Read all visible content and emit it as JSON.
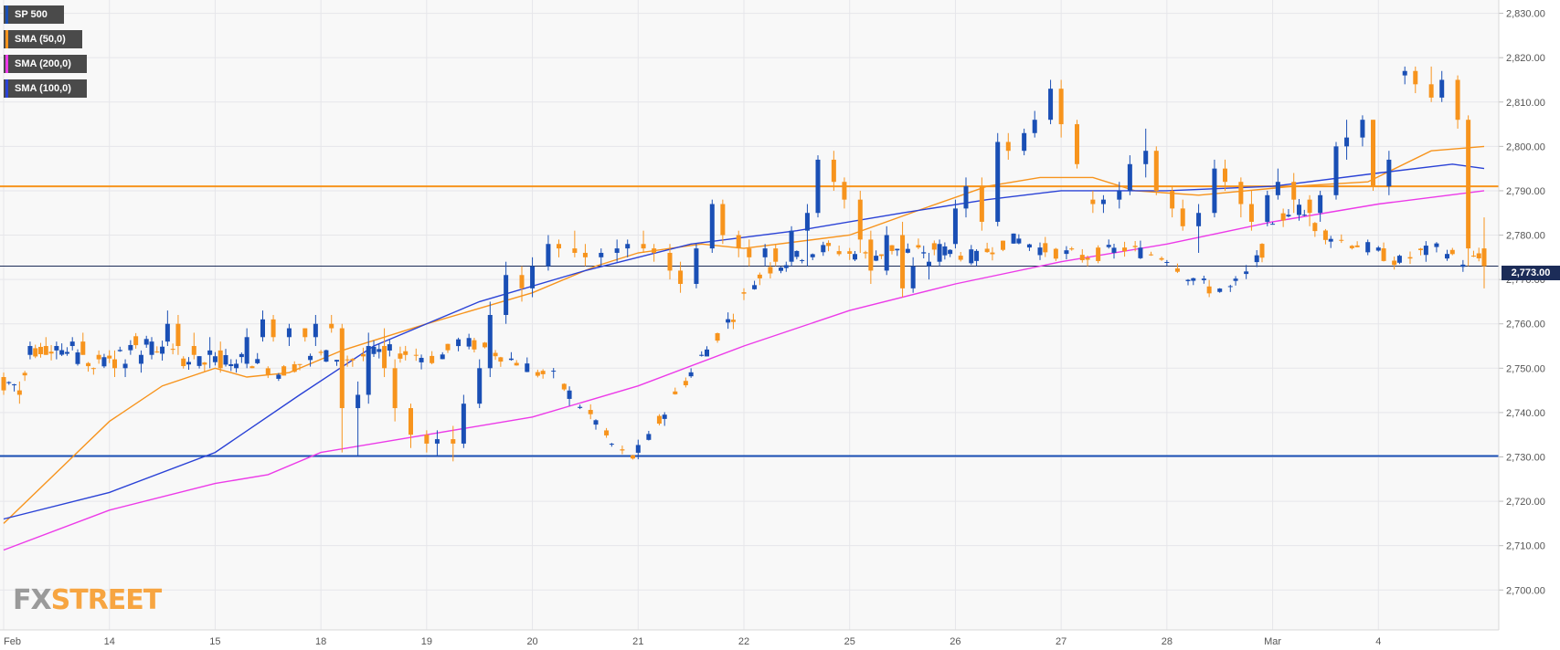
{
  "legend": {
    "symbol": "SP 500",
    "sma50": "SMA (50,0)",
    "sma200": "SMA (200,0)",
    "sma100": "SMA (100,0)"
  },
  "colors": {
    "bull": "#1a4fb5",
    "bear": "#f7941d",
    "sma50": "#f7941d",
    "sma100": "#2a42d6",
    "sma200": "#ec3ae8",
    "resistance": "#f7941d",
    "support": "#1a4fb5",
    "price_line": "#1c2c58",
    "grid": "#e6e6ea",
    "background": "#f8f8f8"
  },
  "logo": {
    "fx": "FX",
    "street": "STREET"
  },
  "last_price": "2,773.00",
  "chart_data": {
    "type": "candlestick",
    "title": "",
    "xlabel": "",
    "ylabel": "",
    "ylim": [
      2691,
      2833
    ],
    "grid": true,
    "y_ticks": [
      "2,700.00",
      "2,710.00",
      "2,720.00",
      "2,730.00",
      "2,740.00",
      "2,750.00",
      "2,760.00",
      "2,770.00",
      "2,780.00",
      "2,790.00",
      "2,800.00",
      "2,810.00",
      "2,820.00",
      "2,830.00"
    ],
    "y_tick_values": [
      2700,
      2710,
      2720,
      2730,
      2740,
      2750,
      2760,
      2770,
      2780,
      2790,
      2800,
      2810,
      2820,
      2830
    ],
    "x_ticks": [
      "Feb",
      "14",
      "15",
      "18",
      "19",
      "20",
      "21",
      "22",
      "25",
      "26",
      "27",
      "28",
      "Mar",
      "4"
    ],
    "x_tick_index": [
      0,
      20,
      40,
      60,
      80,
      100,
      120,
      140,
      160,
      180,
      200,
      220,
      240,
      260
    ],
    "bars_in_view": 281,
    "horizontal_levels": [
      {
        "name": "resistance",
        "value": 2791
      },
      {
        "name": "support",
        "value": 2730.2
      }
    ],
    "current_price": 2773.0,
    "close_path": [
      [
        0,
        2747
      ],
      [
        3,
        2746
      ],
      [
        6,
        2754
      ],
      [
        10,
        2755
      ],
      [
        14,
        2752
      ],
      [
        18,
        2750
      ],
      [
        22,
        2755
      ],
      [
        26,
        2756
      ],
      [
        30,
        2754
      ],
      [
        34,
        2752
      ],
      [
        38,
        2751
      ],
      [
        42,
        2752
      ],
      [
        46,
        2752
      ],
      [
        52,
        2749
      ],
      [
        56,
        2751
      ],
      [
        60,
        2753
      ],
      [
        66,
        2752
      ],
      [
        72,
        2754
      ],
      [
        78,
        2753
      ],
      [
        82,
        2752
      ],
      [
        86,
        2756
      ],
      [
        90,
        2755
      ],
      [
        94,
        2753
      ],
      [
        98,
        2751
      ],
      [
        101,
        2749
      ],
      [
        104,
        2748
      ],
      [
        108,
        2743
      ],
      [
        112,
        2738
      ],
      [
        116,
        2731
      ],
      [
        119,
        2730
      ],
      [
        122,
        2734
      ],
      [
        126,
        2742
      ],
      [
        130,
        2749
      ],
      [
        134,
        2756
      ],
      [
        138,
        2762
      ],
      [
        141,
        2768
      ],
      [
        144,
        2772
      ],
      [
        148,
        2774
      ],
      [
        152,
        2776
      ],
      [
        156,
        2777
      ],
      [
        160,
        2776
      ],
      [
        164,
        2775
      ],
      [
        168,
        2777
      ],
      [
        172,
        2776
      ],
      [
        176,
        2777
      ],
      [
        180,
        2776
      ],
      [
        184,
        2775
      ],
      [
        188,
        2778
      ],
      [
        192,
        2779
      ],
      [
        196,
        2777
      ],
      [
        200,
        2776
      ],
      [
        204,
        2775
      ],
      [
        208,
        2776
      ],
      [
        212,
        2777
      ],
      [
        216,
        2776
      ],
      [
        220,
        2775
      ],
      [
        224,
        2771
      ],
      [
        228,
        2768
      ],
      [
        232,
        2768
      ],
      [
        236,
        2772
      ],
      [
        240,
        2781
      ],
      [
        244,
        2787
      ],
      [
        248,
        2782
      ],
      [
        252,
        2779
      ],
      [
        256,
        2778
      ],
      [
        260,
        2776
      ],
      [
        264,
        2774
      ],
      [
        268,
        2776
      ],
      [
        272,
        2777
      ],
      [
        276,
        2774
      ],
      [
        280,
        2775
      ]
    ],
    "series": [
      {
        "name": "SP 500",
        "candles_ohlc": [
          [
            2748,
            2749,
            2744,
            2745
          ],
          [
            2745,
            2747,
            2742,
            2744
          ],
          [
            2753,
            2756,
            2752,
            2755
          ],
          [
            2755,
            2757,
            2753,
            2753
          ],
          [
            2754,
            2756,
            2752,
            2755
          ],
          [
            2755,
            2757,
            2754,
            2756
          ],
          [
            2756,
            2758,
            2753,
            2753
          ],
          [
            2753,
            2754,
            2751,
            2752
          ],
          [
            2752,
            2754,
            2748,
            2750
          ],
          [
            2750,
            2752,
            2748,
            2751
          ],
          [
            2751,
            2754,
            2749,
            2753
          ],
          [
            2753,
            2757,
            2752,
            2756
          ],
          [
            2756,
            2763,
            2755,
            2760
          ],
          [
            2760,
            2762,
            2753,
            2755
          ],
          [
            2755,
            2758,
            2752,
            2753
          ],
          [
            2753,
            2757,
            2750,
            2754
          ],
          [
            2754,
            2756,
            2749,
            2750
          ],
          [
            2750,
            2752,
            2749,
            2751
          ],
          [
            2751,
            2759,
            2750,
            2757
          ],
          [
            2757,
            2763,
            2756,
            2761
          ],
          [
            2761,
            2762,
            2756,
            2757
          ],
          [
            2757,
            2760,
            2755,
            2759
          ],
          [
            2759,
            2759,
            2756,
            2757
          ],
          [
            2757,
            2762,
            2755,
            2760
          ],
          [
            2760,
            2762,
            2758,
            2759
          ],
          [
            2759,
            2760,
            2731,
            2741
          ],
          [
            2741,
            2747,
            2730,
            2744
          ],
          [
            2744,
            2758,
            2742,
            2755
          ],
          [
            2755,
            2759,
            2748,
            2750
          ],
          [
            2750,
            2752,
            2738,
            2741
          ],
          [
            2741,
            2742,
            2732,
            2735
          ],
          [
            2735,
            2736,
            2731,
            2733
          ],
          [
            2733,
            2736,
            2730,
            2734
          ],
          [
            2734,
            2737,
            2729,
            2733
          ],
          [
            2733,
            2744,
            2732,
            2742
          ],
          [
            2742,
            2752,
            2741,
            2750
          ],
          [
            2750,
            2765,
            2748,
            2762
          ],
          [
            2762,
            2774,
            2760,
            2771
          ],
          [
            2771,
            2773,
            2765,
            2768
          ],
          [
            2768,
            2775,
            2766,
            2773
          ],
          [
            2773,
            2780,
            2772,
            2778
          ],
          [
            2778,
            2779,
            2775,
            2777
          ],
          [
            2777,
            2781,
            2775,
            2776
          ],
          [
            2776,
            2778,
            2773,
            2775
          ],
          [
            2775,
            2777,
            2773,
            2776
          ],
          [
            2776,
            2779,
            2774,
            2777
          ],
          [
            2777,
            2779,
            2775,
            2778
          ],
          [
            2778,
            2781,
            2776,
            2777
          ],
          [
            2777,
            2778,
            2774,
            2776
          ],
          [
            2776,
            2778,
            2770,
            2772
          ],
          [
            2772,
            2774,
            2767,
            2769
          ],
          [
            2769,
            2778,
            2768,
            2777
          ],
          [
            2777,
            2788,
            2776,
            2787
          ],
          [
            2787,
            2788,
            2778,
            2780
          ],
          [
            2780,
            2781,
            2775,
            2777
          ],
          [
            2777,
            2779,
            2773,
            2775
          ],
          [
            2775,
            2778,
            2773,
            2777
          ],
          [
            2777,
            2778,
            2773,
            2774
          ],
          [
            2774,
            2782,
            2773,
            2781
          ],
          [
            2781,
            2787,
            2773,
            2785
          ],
          [
            2785,
            2798,
            2784,
            2797
          ],
          [
            2797,
            2799,
            2790,
            2792
          ],
          [
            2792,
            2793,
            2786,
            2788
          ],
          [
            2788,
            2790,
            2776,
            2779
          ],
          [
            2779,
            2781,
            2769,
            2772
          ],
          [
            2772,
            2782,
            2771,
            2780
          ],
          [
            2780,
            2783,
            2766,
            2768
          ],
          [
            2768,
            2775,
            2767,
            2773
          ],
          [
            2773,
            2776,
            2770,
            2774
          ],
          [
            2774,
            2779,
            2773,
            2778
          ],
          [
            2778,
            2788,
            2777,
            2786
          ],
          [
            2786,
            2793,
            2784,
            2791
          ],
          [
            2791,
            2793,
            2781,
            2783
          ],
          [
            2783,
            2803,
            2782,
            2801
          ],
          [
            2801,
            2803,
            2797,
            2799
          ],
          [
            2799,
            2804,
            2798,
            2803
          ],
          [
            2803,
            2808,
            2802,
            2806
          ],
          [
            2806,
            2815,
            2805,
            2813
          ],
          [
            2813,
            2815,
            2802,
            2805
          ],
          [
            2805,
            2806,
            2795,
            2796
          ],
          [
            2788,
            2790,
            2785,
            2787
          ],
          [
            2787,
            2789,
            2785,
            2788
          ],
          [
            2788,
            2792,
            2786,
            2790
          ],
          [
            2790,
            2798,
            2789,
            2796
          ],
          [
            2796,
            2804,
            2793,
            2799
          ],
          [
            2799,
            2800,
            2789,
            2790
          ],
          [
            2790,
            2791,
            2784,
            2786
          ],
          [
            2786,
            2788,
            2781,
            2782
          ],
          [
            2782,
            2787,
            2776,
            2785
          ],
          [
            2785,
            2797,
            2784,
            2795
          ],
          [
            2795,
            2797,
            2790,
            2792
          ],
          [
            2792,
            2793,
            2784,
            2787
          ],
          [
            2787,
            2790,
            2781,
            2783
          ],
          [
            2783,
            2790,
            2782,
            2789
          ],
          [
            2789,
            2795,
            2788,
            2792
          ],
          [
            2792,
            2794,
            2785,
            2788
          ],
          [
            2788,
            2789,
            2782,
            2785
          ],
          [
            2785,
            2790,
            2783,
            2789
          ],
          [
            2789,
            2801,
            2788,
            2800
          ],
          [
            2800,
            2806,
            2797,
            2802
          ],
          [
            2802,
            2807,
            2800,
            2806
          ],
          [
            2806,
            2806,
            2790,
            2791
          ],
          [
            2791,
            2799,
            2789,
            2797
          ],
          [
            2816,
            2818,
            2814,
            2817
          ],
          [
            2817,
            2818,
            2812,
            2814
          ],
          [
            2814,
            2818,
            2810,
            2811
          ],
          [
            2811,
            2817,
            2810,
            2815
          ],
          [
            2815,
            2816,
            2804,
            2806
          ],
          [
            2806,
            2807,
            2773,
            2777
          ],
          [
            2777,
            2784,
            2768,
            2773
          ]
        ]
      },
      {
        "name": "SMA (50,0)",
        "path": [
          [
            0,
            2715
          ],
          [
            20,
            2738
          ],
          [
            30,
            2746
          ],
          [
            40,
            2750
          ],
          [
            46,
            2748
          ],
          [
            54,
            2749
          ],
          [
            64,
            2754
          ],
          [
            80,
            2760
          ],
          [
            100,
            2767
          ],
          [
            112,
            2773
          ],
          [
            120,
            2776
          ],
          [
            132,
            2778
          ],
          [
            140,
            2777
          ],
          [
            160,
            2780
          ],
          [
            174,
            2786
          ],
          [
            186,
            2791
          ],
          [
            196,
            2793
          ],
          [
            206,
            2793
          ],
          [
            214,
            2790
          ],
          [
            226,
            2789
          ],
          [
            244,
            2791
          ],
          [
            258,
            2792
          ],
          [
            270,
            2799
          ],
          [
            280,
            2800
          ]
        ]
      },
      {
        "name": "SMA (100,0)",
        "path": [
          [
            0,
            2716
          ],
          [
            20,
            2722
          ],
          [
            40,
            2731
          ],
          [
            56,
            2744
          ],
          [
            70,
            2755
          ],
          [
            90,
            2765
          ],
          [
            110,
            2772
          ],
          [
            130,
            2778
          ],
          [
            150,
            2781
          ],
          [
            170,
            2785
          ],
          [
            186,
            2788
          ],
          [
            200,
            2790
          ],
          [
            220,
            2790
          ],
          [
            240,
            2791
          ],
          [
            260,
            2794
          ],
          [
            274,
            2796
          ],
          [
            280,
            2795
          ]
        ]
      },
      {
        "name": "SMA (200,0)",
        "path": [
          [
            0,
            2709
          ],
          [
            20,
            2718
          ],
          [
            40,
            2724
          ],
          [
            50,
            2726
          ],
          [
            60,
            2731
          ],
          [
            80,
            2735
          ],
          [
            100,
            2739
          ],
          [
            120,
            2746
          ],
          [
            140,
            2755
          ],
          [
            160,
            2763
          ],
          [
            180,
            2769
          ],
          [
            200,
            2774
          ],
          [
            220,
            2778
          ],
          [
            240,
            2783
          ],
          [
            260,
            2787
          ],
          [
            280,
            2790
          ]
        ]
      }
    ]
  }
}
